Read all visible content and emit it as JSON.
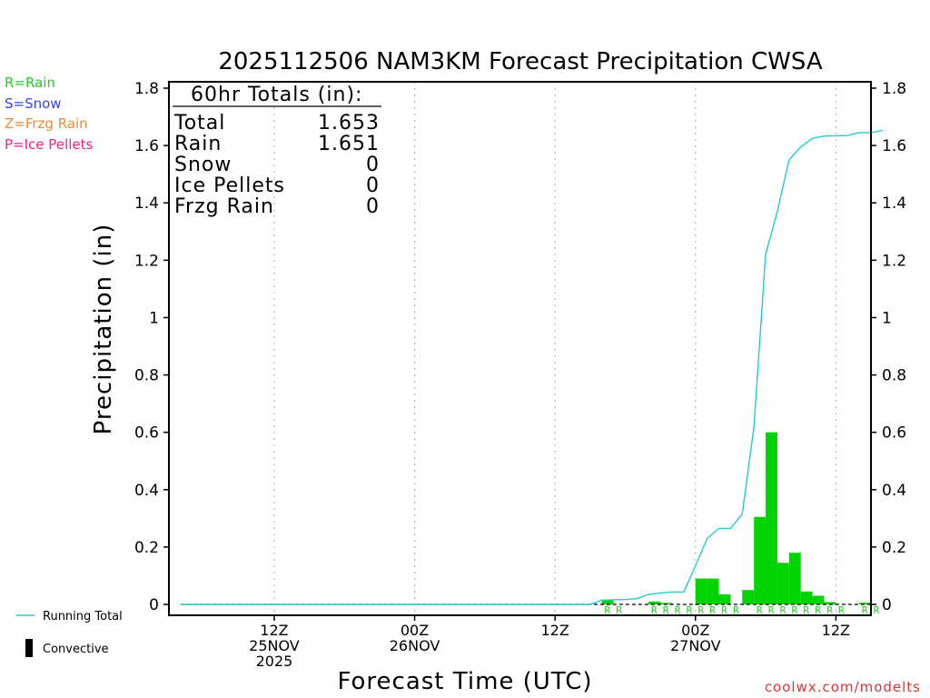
{
  "chart_data": {
    "type": "bar",
    "title": "2025112506 NAM3KM Forecast Precipitation CWSA",
    "xlabel": "Forecast Time (UTC)",
    "ylabel": "Precipitation (in)",
    "ylim": [
      0,
      1.8
    ],
    "xlim_hours": [
      -3,
      57
    ],
    "yticks": [
      "0",
      "0.2",
      "0.4",
      "0.6",
      "0.8",
      "1",
      "1.2",
      "1.4",
      "1.6",
      "1.8"
    ],
    "xticks": [
      {
        "hour": 6,
        "lines": [
          "12Z",
          "25NOV",
          "2025"
        ]
      },
      {
        "hour": 18,
        "lines": [
          "00Z",
          "26NOV"
        ]
      },
      {
        "hour": 30,
        "lines": [
          "12Z"
        ]
      },
      {
        "hour": 42,
        "lines": [
          "00Z",
          "27NOV"
        ]
      },
      {
        "hour": 54,
        "lines": [
          "12Z"
        ]
      }
    ],
    "bar_width_hours": 1,
    "bars": [
      {
        "hour": 34,
        "value": 0.015
      },
      {
        "hour": 38,
        "value": 0.01
      },
      {
        "hour": 39,
        "value": 0.005
      },
      {
        "hour": 42,
        "value": 0.09
      },
      {
        "hour": 43,
        "value": 0.09
      },
      {
        "hour": 44,
        "value": 0.035
      },
      {
        "hour": 46,
        "value": 0.05
      },
      {
        "hour": 47,
        "value": 0.305
      },
      {
        "hour": 48,
        "value": 0.6
      },
      {
        "hour": 49,
        "value": 0.145
      },
      {
        "hour": 50,
        "value": 0.18
      },
      {
        "hour": 51,
        "value": 0.045
      },
      {
        "hour": 52,
        "value": 0.03
      },
      {
        "hour": 53,
        "value": 0.008
      },
      {
        "hour": 56,
        "value": 0.006
      }
    ],
    "precip_type_markers": [
      {
        "hour": 34,
        "type": "R"
      },
      {
        "hour": 35,
        "type": "R"
      },
      {
        "hour": 38,
        "type": "R"
      },
      {
        "hour": 39,
        "type": "R"
      },
      {
        "hour": 40,
        "type": "R"
      },
      {
        "hour": 41,
        "type": "R"
      },
      {
        "hour": 42,
        "type": "R"
      },
      {
        "hour": 43,
        "type": "R"
      },
      {
        "hour": 44,
        "type": "R"
      },
      {
        "hour": 45,
        "type": "R"
      },
      {
        "hour": 47,
        "type": "R"
      },
      {
        "hour": 48,
        "type": "R"
      },
      {
        "hour": 49,
        "type": "R"
      },
      {
        "hour": 50,
        "type": "R"
      },
      {
        "hour": 51,
        "type": "R"
      },
      {
        "hour": 52,
        "type": "R"
      },
      {
        "hour": 53,
        "type": "R"
      },
      {
        "hour": 54,
        "type": "R"
      },
      {
        "hour": 56,
        "type": "R"
      },
      {
        "hour": 57,
        "type": "R"
      }
    ],
    "running_total": [
      {
        "hour": -2,
        "value": 0
      },
      {
        "hour": 33,
        "value": 0
      },
      {
        "hour": 34,
        "value": 0.015
      },
      {
        "hour": 36,
        "value": 0.017
      },
      {
        "hour": 37,
        "value": 0.02
      },
      {
        "hour": 38,
        "value": 0.035
      },
      {
        "hour": 39,
        "value": 0.04
      },
      {
        "hour": 40,
        "value": 0.043
      },
      {
        "hour": 41,
        "value": 0.043
      },
      {
        "hour": 42,
        "value": 0.135
      },
      {
        "hour": 43,
        "value": 0.23
      },
      {
        "hour": 44,
        "value": 0.265
      },
      {
        "hour": 45,
        "value": 0.265
      },
      {
        "hour": 46,
        "value": 0.315
      },
      {
        "hour": 47,
        "value": 0.62
      },
      {
        "hour": 48,
        "value": 1.22
      },
      {
        "hour": 49,
        "value": 1.37
      },
      {
        "hour": 50,
        "value": 1.55
      },
      {
        "hour": 51,
        "value": 1.595
      },
      {
        "hour": 52,
        "value": 1.625
      },
      {
        "hour": 53,
        "value": 1.633
      },
      {
        "hour": 55,
        "value": 1.635
      },
      {
        "hour": 56,
        "value": 1.645
      },
      {
        "hour": 57,
        "value": 1.645
      },
      {
        "hour": 58,
        "value": 1.653
      }
    ],
    "totals_box": {
      "header": "60hr Totals (in):",
      "rows": [
        {
          "label": "Total",
          "value": "1.653"
        },
        {
          "label": "Rain",
          "value": "1.651"
        },
        {
          "label": "Snow",
          "value": "0"
        },
        {
          "label": "Ice Pellets",
          "value": "0"
        },
        {
          "label": "Frzg Rain",
          "value": "0"
        }
      ]
    },
    "type_legend": [
      {
        "text": "R=Rain",
        "color": "#22cc22"
      },
      {
        "text": "S=Snow",
        "color": "#3344ee"
      },
      {
        "text": "Z=Frzg Rain",
        "color": "#ee8833"
      },
      {
        "text": "P=Ice Pellets",
        "color": "#ee2288"
      }
    ],
    "series_legend": {
      "running_total": "Running Total",
      "convective": "Convective"
    },
    "colors": {
      "bar": "#00d400",
      "running_total": "#22cccc",
      "marker": "#22cc22",
      "grid": "#aaaaaa"
    }
  },
  "credit": "coolwx.com/modelts"
}
